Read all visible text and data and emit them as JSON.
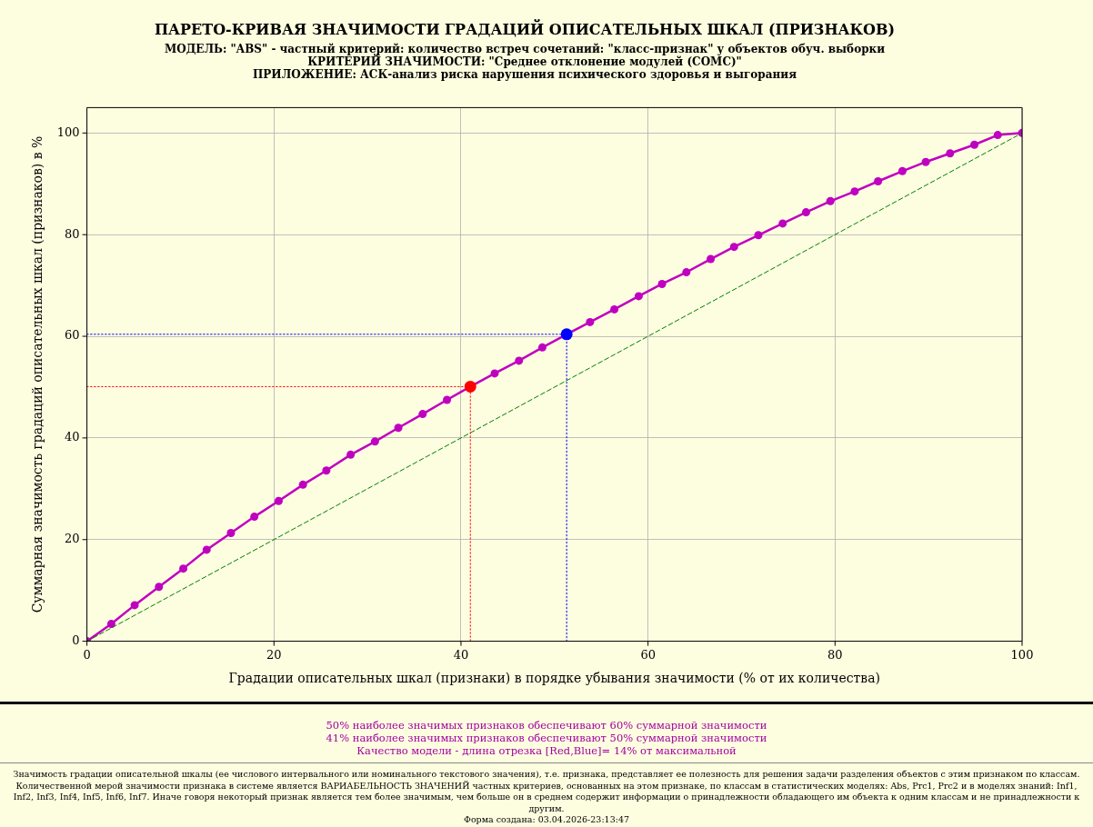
{
  "chart_data": {
    "type": "line",
    "title": "ПАРЕТО-КРИВАЯ ЗНАЧИМОСТИ ГРАДАЦИЙ ОПИСАТЕЛЬНЫХ ШКАЛ (ПРИЗНАКОВ)",
    "subtitle": "МОДЕЛЬ: \"ABS\" - частный критерий: количество встреч сочетаний: \"класс-признак\" у объектов обуч. выборки\nКРИТЕРИЙ ЗНАЧИМОСТИ: \"Среднее отклонение модулей (СОМС)\"\nПРИЛОЖЕНИЕ: АСК-анализ риска нарушения психического здоровья и выгорания",
    "xlabel": "Градации описательных шкал (признаки) в порядке убывания значимости (% от их количества)",
    "ylabel": "Суммарная значимость градаций описательных шкал (признаков) в %",
    "xlim": [
      0,
      100
    ],
    "xticks": [
      0,
      20,
      40,
      60,
      80,
      100
    ],
    "ylim": [
      0,
      105
    ],
    "yticks": [
      0,
      20,
      40,
      60,
      80,
      100
    ],
    "grid": true,
    "legend": false,
    "series": [
      {
        "color": "#008000",
        "line_style": "dashed",
        "marker": "none",
        "x": [
          0,
          100
        ],
        "values": [
          0,
          100
        ]
      },
      {
        "color": "#ff0000",
        "line_style": "dotted",
        "marker": "none",
        "x": [
          0,
          41.0,
          41.0
        ],
        "values": [
          50.1,
          50.1,
          0
        ]
      },
      {
        "color": "#0000ff",
        "line_style": "dotted",
        "marker": "none",
        "x": [
          0,
          51.3,
          51.3
        ],
        "values": [
          60.4,
          60.4,
          0
        ]
      },
      {
        "color": "#c000c0",
        "line_style": "solid",
        "marker": "circle",
        "x": [
          0,
          2.6,
          5.1,
          7.7,
          10.3,
          12.8,
          15.4,
          17.9,
          20.5,
          23.1,
          25.6,
          28.2,
          30.8,
          33.3,
          35.9,
          38.5,
          41.0,
          43.6,
          46.2,
          48.7,
          51.3,
          53.8,
          56.4,
          59.0,
          61.5,
          64.1,
          66.7,
          69.2,
          71.8,
          74.4,
          76.9,
          79.5,
          82.1,
          84.6,
          87.2,
          89.7,
          92.3,
          94.9,
          97.4,
          100
        ],
        "values": [
          0,
          3.4,
          7.1,
          10.7,
          14.3,
          18.0,
          21.3,
          24.5,
          27.6,
          30.8,
          33.6,
          36.7,
          39.3,
          42.0,
          44.7,
          47.5,
          50.1,
          52.7,
          55.2,
          57.8,
          60.4,
          62.8,
          65.3,
          67.9,
          70.3,
          72.6,
          75.2,
          77.6,
          79.9,
          82.2,
          84.4,
          86.6,
          88.5,
          90.5,
          92.5,
          94.3,
          96.0,
          97.7,
          99.6,
          100
        ]
      },
      {
        "type": "scatter",
        "color": "#ff0000",
        "marker": "circle",
        "x": [
          41.0
        ],
        "values": [
          50.1
        ]
      },
      {
        "type": "scatter",
        "color": "#0000ff",
        "marker": "circle",
        "x": [
          51.3
        ],
        "values": [
          60.4
        ]
      }
    ],
    "annotations": [
      "50% наиболее значимых признаков обеспечивают 60% суммарной значимости",
      "41% наиболее значимых признаков обеспечивают 50% суммарной значимости",
      "Качество модели - длина отрезка [Red,Blue]= 14% от максимальной",
      "Значимость градации описательной шкалы (ее числового интервального или номинального текстового значения), т.е. признака, представляет ее полезность для решения задачи разделения объектов с этим признаком по классам. Количественной мерой значимости признака в системе является ВАРИАБЕЛЬНОСТЬ ЗНАЧЕНИЙ частных критериев, основанных на этом признаке, по классам в статистических моделях: Abs, Prc1, Prc2 и в моделях знаний: Inf1, Inf2, Inf3, Inf4, Inf5, Inf6, Inf7. Иначе говоря некоторый признак является тем более значимым, чем больше он в среднем содержит информации о принадлежности обладающего им объекта к одним классам и не принадлежности к другим.",
      "Форма создана: 03.04.2026-23:13:47"
    ]
  }
}
